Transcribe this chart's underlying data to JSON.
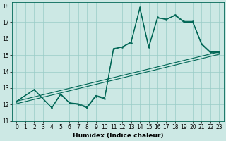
{
  "xlabel": "Humidex (Indice chaleur)",
  "bg_color": "#cce8e4",
  "grid_color": "#99ccc7",
  "line_color": "#006655",
  "xlim": [
    -0.5,
    23.5
  ],
  "ylim": [
    11,
    18.2
  ],
  "xticks": [
    0,
    1,
    2,
    3,
    4,
    5,
    6,
    7,
    8,
    9,
    10,
    11,
    12,
    13,
    14,
    15,
    16,
    17,
    18,
    19,
    20,
    21,
    22,
    23
  ],
  "yticks": [
    11,
    12,
    13,
    14,
    15,
    16,
    17,
    18
  ],
  "jagged1_x": [
    0,
    2,
    4,
    5,
    6,
    7,
    8,
    9,
    10,
    11,
    12,
    13,
    14,
    15,
    16,
    17,
    18,
    19,
    20,
    21,
    22,
    23
  ],
  "jagged1_y": [
    12.2,
    12.9,
    11.8,
    12.65,
    12.1,
    12.05,
    11.85,
    12.55,
    12.4,
    15.35,
    15.5,
    15.8,
    17.85,
    15.45,
    17.25,
    17.2,
    17.4,
    17.0,
    17.0,
    15.65,
    15.15,
    15.15
  ],
  "jagged2_x": [
    0,
    2,
    4,
    5,
    6,
    7,
    8,
    9,
    10,
    11,
    12,
    13,
    14,
    15,
    16,
    17,
    18,
    19,
    20,
    21,
    22,
    23
  ],
  "jagged2_y": [
    12.2,
    12.9,
    11.8,
    12.6,
    12.1,
    12.0,
    11.8,
    12.5,
    12.35,
    15.4,
    15.5,
    15.75,
    17.9,
    15.5,
    17.3,
    17.15,
    17.45,
    17.05,
    17.05,
    15.7,
    15.2,
    15.2
  ],
  "refline1_x": [
    0,
    23
  ],
  "refline1_y": [
    12.2,
    15.2
  ],
  "refline2_x": [
    0,
    23
  ],
  "refline2_y": [
    12.05,
    15.05
  ],
  "dots_x": [
    0,
    2,
    4,
    5,
    6,
    7,
    8,
    9,
    10,
    11,
    12,
    13,
    14,
    15,
    16,
    17,
    18,
    19,
    20,
    21,
    22,
    23
  ],
  "dots_y": [
    12.2,
    12.9,
    11.8,
    12.6,
    12.1,
    12.0,
    11.8,
    12.5,
    12.35,
    15.4,
    15.5,
    15.75,
    17.9,
    15.5,
    17.3,
    17.15,
    17.45,
    17.05,
    17.05,
    15.7,
    15.2,
    15.2
  ],
  "tick_fontsize": 5.5,
  "xlabel_fontsize": 6.5
}
